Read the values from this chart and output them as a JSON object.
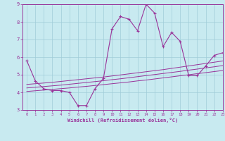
{
  "xlabel": "Windchill (Refroidissement éolien,°C)",
  "ylabel": "",
  "xlim": [
    -0.5,
    23
  ],
  "ylim": [
    3,
    9
  ],
  "yticks": [
    3,
    4,
    5,
    6,
    7,
    8,
    9
  ],
  "xticks": [
    0,
    1,
    2,
    3,
    4,
    5,
    6,
    7,
    8,
    9,
    10,
    11,
    12,
    13,
    14,
    15,
    16,
    17,
    18,
    19,
    20,
    21,
    22,
    23
  ],
  "bg_color": "#c8eaf0",
  "line_color": "#993399",
  "grid_color": "#a0ccd8",
  "line1_x": [
    0,
    1,
    2,
    3,
    4,
    5,
    6,
    7,
    8,
    9,
    10,
    11,
    12,
    13,
    14,
    15,
    16,
    17,
    18,
    19,
    20,
    21,
    22,
    23
  ],
  "line1_y": [
    5.8,
    4.65,
    4.2,
    4.1,
    4.1,
    4.0,
    3.25,
    3.25,
    4.2,
    4.8,
    7.6,
    8.3,
    8.15,
    7.5,
    9.0,
    8.5,
    6.6,
    7.4,
    6.9,
    4.95,
    4.95,
    5.5,
    6.1,
    6.25
  ],
  "line2_y": [
    4.05,
    4.09,
    4.13,
    4.17,
    4.21,
    4.25,
    4.3,
    4.34,
    4.39,
    4.44,
    4.49,
    4.54,
    4.59,
    4.65,
    4.7,
    4.76,
    4.82,
    4.88,
    4.94,
    5.0,
    5.06,
    5.12,
    5.18,
    5.24
  ],
  "line3_y": [
    4.25,
    4.29,
    4.33,
    4.37,
    4.41,
    4.46,
    4.51,
    4.56,
    4.61,
    4.66,
    4.72,
    4.77,
    4.83,
    4.89,
    4.95,
    5.01,
    5.07,
    5.13,
    5.19,
    5.26,
    5.32,
    5.39,
    5.45,
    5.52
  ],
  "line4_y": [
    4.45,
    4.49,
    4.53,
    4.57,
    4.62,
    4.67,
    4.72,
    4.77,
    4.82,
    4.87,
    4.93,
    4.99,
    5.05,
    5.11,
    5.17,
    5.23,
    5.29,
    5.36,
    5.43,
    5.5,
    5.57,
    5.64,
    5.71,
    5.78
  ]
}
